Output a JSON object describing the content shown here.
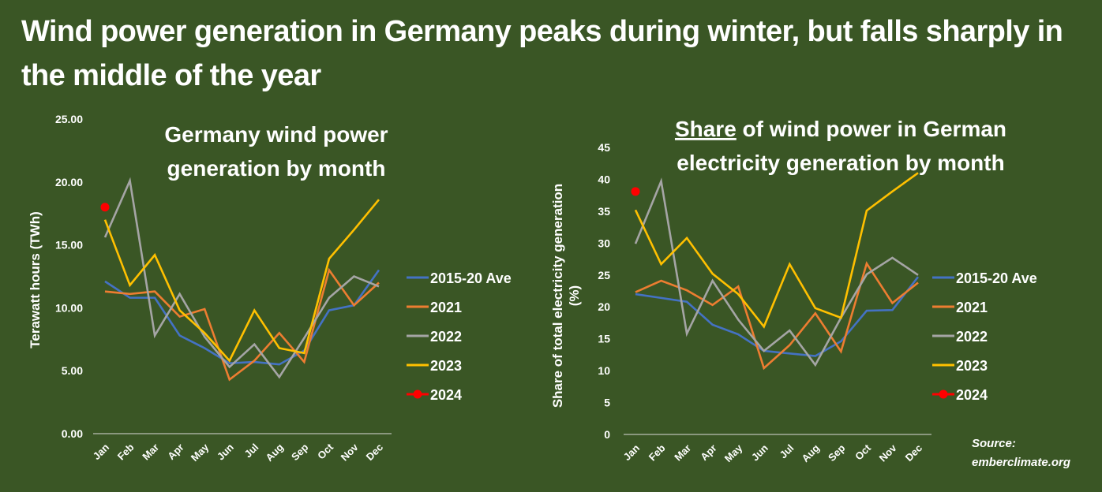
{
  "title": "Wind power generation in Germany peaks during winter, but falls sharply in the middle of the year",
  "source_label": "Source:",
  "source_value": "emberclimate.org",
  "colors": {
    "background": "#3a5625",
    "2015-20 Ave": "#4472c4",
    "2021": "#ed7d31",
    "2022": "#a5a5a5",
    "2023": "#ffc000",
    "2024": "#ff0000"
  },
  "chart_data": [
    {
      "type": "line",
      "title": "Germany wind power generation by month",
      "xlabel": "",
      "ylabel": "Terawatt hours (TWh)",
      "ylim": [
        0,
        25
      ],
      "yticks": [
        "0.00",
        "5.00",
        "10.00",
        "15.00",
        "20.00",
        "25.00"
      ],
      "grid": false,
      "legend": "right",
      "categories": [
        "Jan",
        "Feb",
        "Mar",
        "Apr",
        "May",
        "Jun",
        "Jul",
        "Aug",
        "Sep",
        "Oct",
        "Nov",
        "Dec"
      ],
      "series": [
        {
          "name": "2015-20 Ave",
          "values": [
            12.1,
            10.8,
            10.8,
            7.8,
            6.8,
            5.6,
            5.7,
            5.5,
            6.6,
            9.8,
            10.2,
            13.0
          ]
        },
        {
          "name": "2021",
          "values": [
            11.3,
            11.1,
            11.3,
            9.3,
            9.9,
            4.3,
            5.8,
            8.0,
            5.7,
            13.0,
            10.2,
            12.0
          ]
        },
        {
          "name": "2022",
          "values": [
            15.6,
            20.1,
            7.8,
            11.1,
            7.7,
            5.3,
            7.1,
            4.5,
            7.6,
            10.8,
            12.5,
            11.7
          ]
        },
        {
          "name": "2023",
          "values": [
            17.0,
            11.8,
            14.2,
            9.8,
            8.0,
            5.8,
            9.8,
            6.8,
            6.4,
            13.9,
            16.2,
            18.6
          ]
        },
        {
          "name": "2024",
          "values": [
            18.0,
            null,
            null,
            null,
            null,
            null,
            null,
            null,
            null,
            null,
            null,
            null
          ],
          "marker": "circle"
        }
      ]
    },
    {
      "type": "line",
      "title_underlined": "Share",
      "title": "of wind power in German electricity generation by month",
      "xlabel": "",
      "ylabel": "Share of total electricity generation (%)",
      "ylim": [
        0,
        45
      ],
      "yticks": [
        "0",
        "5",
        "10",
        "15",
        "20",
        "25",
        "30",
        "35",
        "40",
        "45"
      ],
      "grid": false,
      "legend": "right",
      "categories": [
        "Jan",
        "Feb",
        "Mar",
        "Apr",
        "May",
        "Jun",
        "Jul",
        "Aug",
        "Sep",
        "Oct",
        "Nov",
        "Dec"
      ],
      "series": [
        {
          "name": "2015-20 Ave",
          "values": [
            22.0,
            21.4,
            20.8,
            17.2,
            15.7,
            13.1,
            12.7,
            12.3,
            14.6,
            19.4,
            19.5,
            24.7
          ]
        },
        {
          "name": "2021",
          "values": [
            22.3,
            24.1,
            22.6,
            20.3,
            23.2,
            10.4,
            14.0,
            19.0,
            13.0,
            26.8,
            20.6,
            23.8
          ]
        },
        {
          "name": "2022",
          "values": [
            29.9,
            39.7,
            15.8,
            24.1,
            18.0,
            13.1,
            16.3,
            10.9,
            18.3,
            25.1,
            27.7,
            25.0
          ]
        },
        {
          "name": "2023",
          "values": [
            35.2,
            26.7,
            30.8,
            25.2,
            22.0,
            16.9,
            26.7,
            19.8,
            18.3,
            35.1,
            38.1,
            41.0
          ]
        },
        {
          "name": "2024",
          "values": [
            38.1,
            null,
            null,
            null,
            null,
            null,
            null,
            null,
            null,
            null,
            null,
            null
          ],
          "marker": "circle"
        }
      ]
    }
  ]
}
